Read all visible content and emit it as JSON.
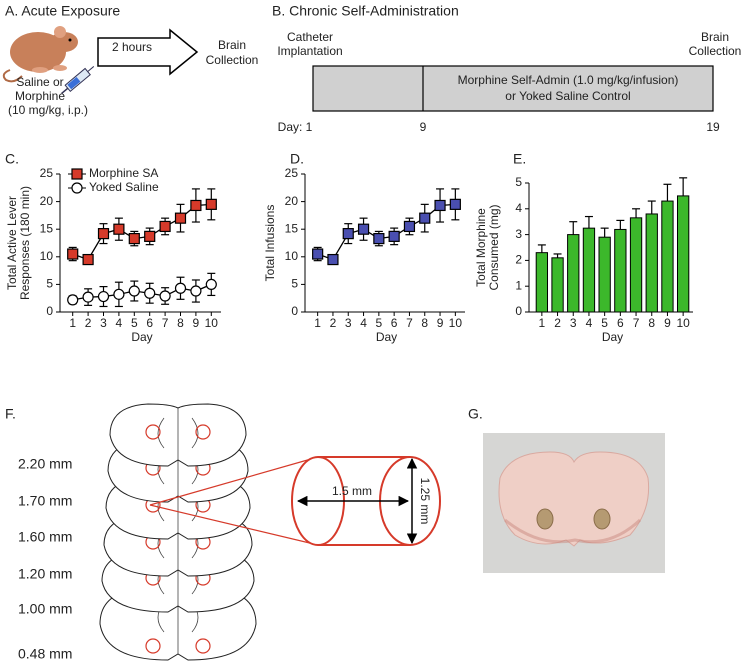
{
  "panel_a": {
    "title": "A. Acute Exposure",
    "arrow_label": "2 hours",
    "endpoint": [
      "Brain",
      "Collection"
    ],
    "treatment": [
      "Saline or",
      "Morphine",
      "(10 mg/kg, i.p.)"
    ]
  },
  "panel_b": {
    "title": "B. Chronic Self-Administration",
    "start": [
      "Catheter",
      "Implantation"
    ],
    "end": [
      "Brain",
      "Collection"
    ],
    "phase": [
      "Morphine Self-Admin (1.0 mg/kg/infusion)",
      "or Yoked Saline Control"
    ],
    "days": [
      "Day: 1",
      "9",
      "19"
    ]
  },
  "chart_data": [
    {
      "panel": "C.",
      "type": "line",
      "ylabel": [
        "Total Active Lever",
        "Responses (180 min)"
      ],
      "xlabel": "Day",
      "categories": [
        1,
        2,
        3,
        4,
        5,
        6,
        7,
        8,
        9,
        10
      ],
      "ylim": [
        0,
        25
      ],
      "yticks": [
        0,
        5,
        10,
        15,
        20,
        25
      ],
      "legend": "top-left",
      "series": [
        {
          "name": "Morphine SA",
          "color": "#d63a2a",
          "marker": "square",
          "values": [
            10.5,
            9.5,
            14.2,
            15,
            13.3,
            13.7,
            15.5,
            17,
            19.3,
            19.5
          ],
          "errors": [
            1.2,
            0.5,
            1.8,
            2,
            1.3,
            1.5,
            1.5,
            2.5,
            3,
            2.8
          ]
        },
        {
          "name": "Yoked Saline",
          "color": "#ffffff",
          "marker": "circle",
          "values": [
            2.2,
            2.7,
            2.8,
            3.2,
            3.8,
            3.4,
            2.9,
            4.3,
            3.8,
            5.0
          ],
          "errors": [
            0.7,
            1.5,
            1.8,
            2.2,
            1.8,
            1.8,
            1.5,
            2,
            2,
            2
          ]
        }
      ]
    },
    {
      "panel": "D.",
      "type": "line",
      "ylabel": [
        "Total Infusions"
      ],
      "xlabel": "Day",
      "categories": [
        1,
        2,
        3,
        4,
        5,
        6,
        7,
        8,
        9,
        10
      ],
      "ylim": [
        0,
        25
      ],
      "yticks": [
        0,
        5,
        10,
        15,
        20,
        25
      ],
      "series": [
        {
          "color": "#4a4fb0",
          "marker": "square",
          "values": [
            10.5,
            9.5,
            14.2,
            15,
            13.3,
            13.7,
            15.5,
            17,
            19.3,
            19.5
          ],
          "errors": [
            1.2,
            0.5,
            1.8,
            2,
            1.3,
            1.5,
            1.5,
            2.5,
            3,
            2.8
          ]
        }
      ]
    },
    {
      "panel": "E.",
      "type": "bar",
      "ylabel": [
        "Total Morphine",
        "Consumed (mg)"
      ],
      "xlabel": "Day",
      "categories": [
        1,
        2,
        3,
        4,
        5,
        6,
        7,
        8,
        9,
        10
      ],
      "ylim": [
        0,
        5
      ],
      "yticks": [
        0,
        1,
        2,
        3,
        4,
        5
      ],
      "color": "#3cb82b",
      "values": [
        2.3,
        2.1,
        3.0,
        3.25,
        2.9,
        3.2,
        3.65,
        3.8,
        4.3,
        4.5
      ],
      "errors": [
        0.3,
        0.15,
        0.5,
        0.45,
        0.35,
        0.35,
        0.35,
        0.5,
        0.65,
        0.7
      ]
    }
  ],
  "panel_f": {
    "title": "F.",
    "levels": [
      "2.20 mm",
      "1.70 mm",
      "1.60 mm",
      "1.20 mm",
      "1.00 mm",
      "0.48 mm"
    ],
    "cylinder_length": "1.5 mm",
    "cylinder_diameter": "1.25 mm"
  },
  "panel_g": {
    "title": "G."
  }
}
